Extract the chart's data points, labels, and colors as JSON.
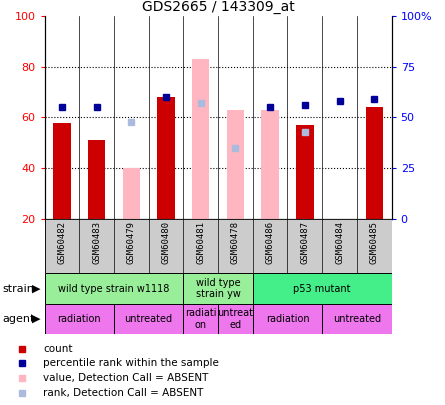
{
  "title": "GDS2665 / 143309_at",
  "samples": [
    "GSM60482",
    "GSM60483",
    "GSM60479",
    "GSM60480",
    "GSM60481",
    "GSM60478",
    "GSM60486",
    "GSM60487",
    "GSM60484",
    "GSM60485"
  ],
  "count_values": [
    58,
    51,
    null,
    68,
    null,
    null,
    null,
    57,
    20,
    64
  ],
  "rank_values": [
    55,
    55,
    null,
    60,
    null,
    null,
    55,
    56,
    58,
    59
  ],
  "absent_value_values": [
    null,
    null,
    40,
    null,
    83,
    63,
    63,
    null,
    null,
    null
  ],
  "absent_rank_values": [
    null,
    null,
    48,
    null,
    57,
    35,
    null,
    43,
    null,
    null
  ],
  "ylim_left": [
    20,
    100
  ],
  "ylim_right": [
    0,
    100
  ],
  "yticks_left": [
    20,
    40,
    60,
    80,
    100
  ],
  "yticks_right_vals": [
    0,
    25,
    50,
    75,
    100
  ],
  "yticks_right_labels": [
    "0",
    "25",
    "50",
    "75",
    "100%"
  ],
  "strain_groups": [
    {
      "label": "wild type strain w1118",
      "start": 0,
      "end": 4,
      "color": "#99EE99"
    },
    {
      "label": "wild type\nstrain yw",
      "start": 4,
      "end": 6,
      "color": "#99EE99"
    },
    {
      "label": "p53 mutant",
      "start": 6,
      "end": 10,
      "color": "#44EE88"
    }
  ],
  "agent_groups": [
    {
      "label": "radiation",
      "start": 0,
      "end": 2,
      "color": "#EE77EE"
    },
    {
      "label": "untreated",
      "start": 2,
      "end": 4,
      "color": "#EE77EE"
    },
    {
      "label": "radiati\non",
      "start": 4,
      "end": 5,
      "color": "#EE77EE"
    },
    {
      "label": "untreat\ned",
      "start": 5,
      "end": 6,
      "color": "#EE77EE"
    },
    {
      "label": "radiation",
      "start": 6,
      "end": 8,
      "color": "#EE77EE"
    },
    {
      "label": "untreated",
      "start": 8,
      "end": 10,
      "color": "#EE77EE"
    }
  ],
  "color_count": "#CC0000",
  "color_rank": "#000099",
  "color_absent_value": "#FFB6C1",
  "color_absent_rank": "#AABBDD",
  "plot_bg": "#FFFFFF",
  "tick_label_bg": "#CCCCCC",
  "bar_width": 0.5
}
